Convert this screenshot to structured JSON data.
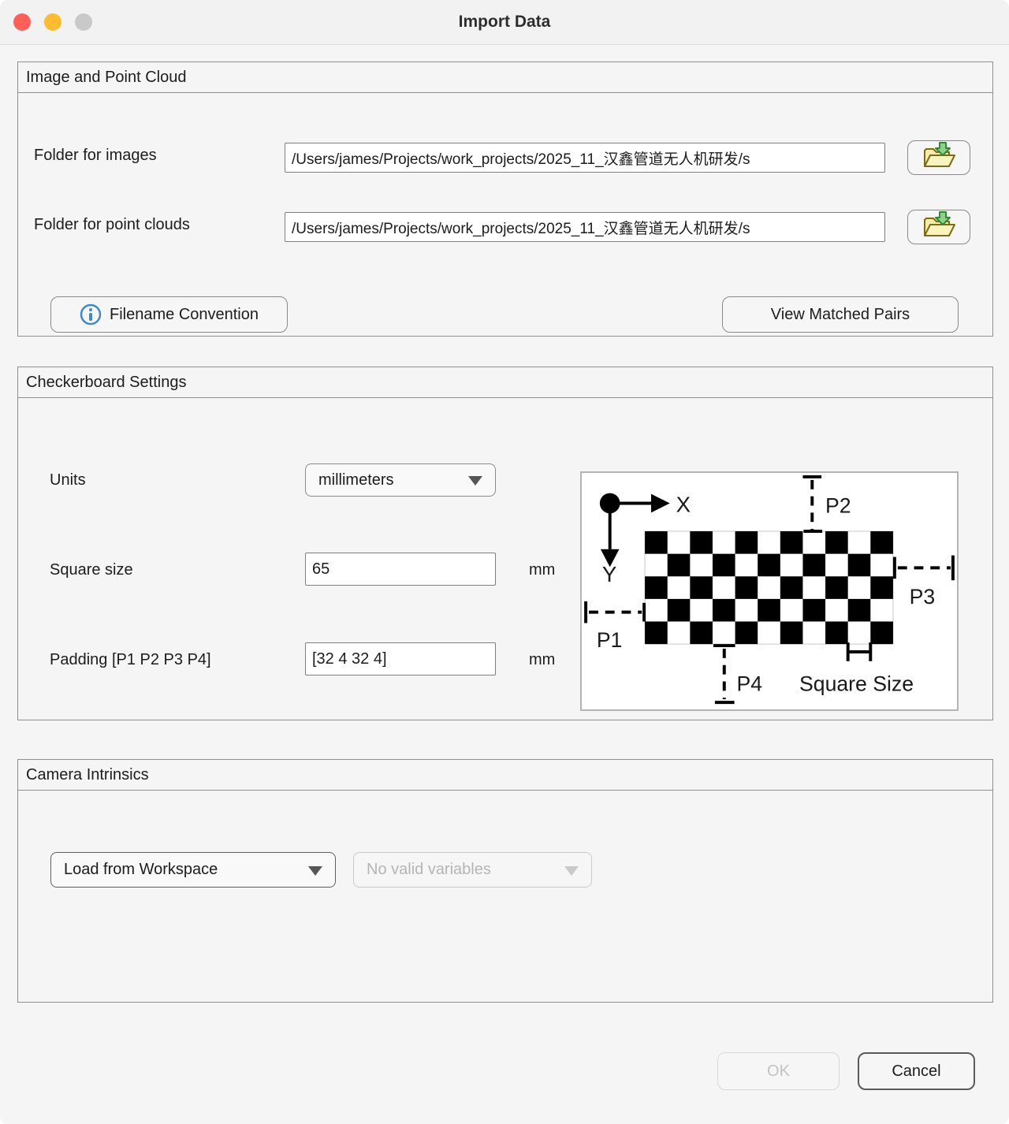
{
  "window": {
    "title": "Import Data"
  },
  "colors": {
    "traffic-red": "#ff5f57",
    "traffic-yellow": "#febc2e",
    "traffic-disabled": "#c9c9c9",
    "info-blue": "#4189c7",
    "folder-yellow": "#f5eda9",
    "folder-outline": "#7a6c16",
    "arrow-green": "#8fd08f",
    "arrow-green-outline": "#2e8b2e"
  },
  "image_point_cloud": {
    "section_title": "Image and Point Cloud",
    "folder_images": {
      "label": "Folder for images",
      "value": "/Users/james/Projects/work_projects/2025_11_汉鑫管道无人机研发/s"
    },
    "folder_point_clouds": {
      "label": "Folder for point clouds",
      "value": "/Users/james/Projects/work_projects/2025_11_汉鑫管道无人机研发/s"
    },
    "filename_convention_label": "Filename Convention",
    "view_matched_pairs_label": "View Matched Pairs"
  },
  "checkerboard": {
    "section_title": "Checkerboard Settings",
    "units": {
      "label": "Units",
      "value": "millimeters"
    },
    "square_size": {
      "label": "Square size",
      "value": "65",
      "unit": "mm"
    },
    "padding": {
      "label": "Padding [P1 P2 P3 P4]",
      "value": "[32 4 32 4]",
      "unit": "mm"
    },
    "diagram": {
      "labels": {
        "x": "X",
        "y": "Y",
        "p1": "P1",
        "p2": "P2",
        "p3": "P3",
        "p4": "P4",
        "square_size": "Square Size"
      },
      "board": {
        "rows": 5,
        "cols": 11
      }
    }
  },
  "camera_intrinsics": {
    "section_title": "Camera Intrinsics",
    "source": {
      "value": "Load from Workspace"
    },
    "variable": {
      "value": "No valid variables"
    }
  },
  "actions": {
    "ok": "OK",
    "cancel": "Cancel"
  }
}
